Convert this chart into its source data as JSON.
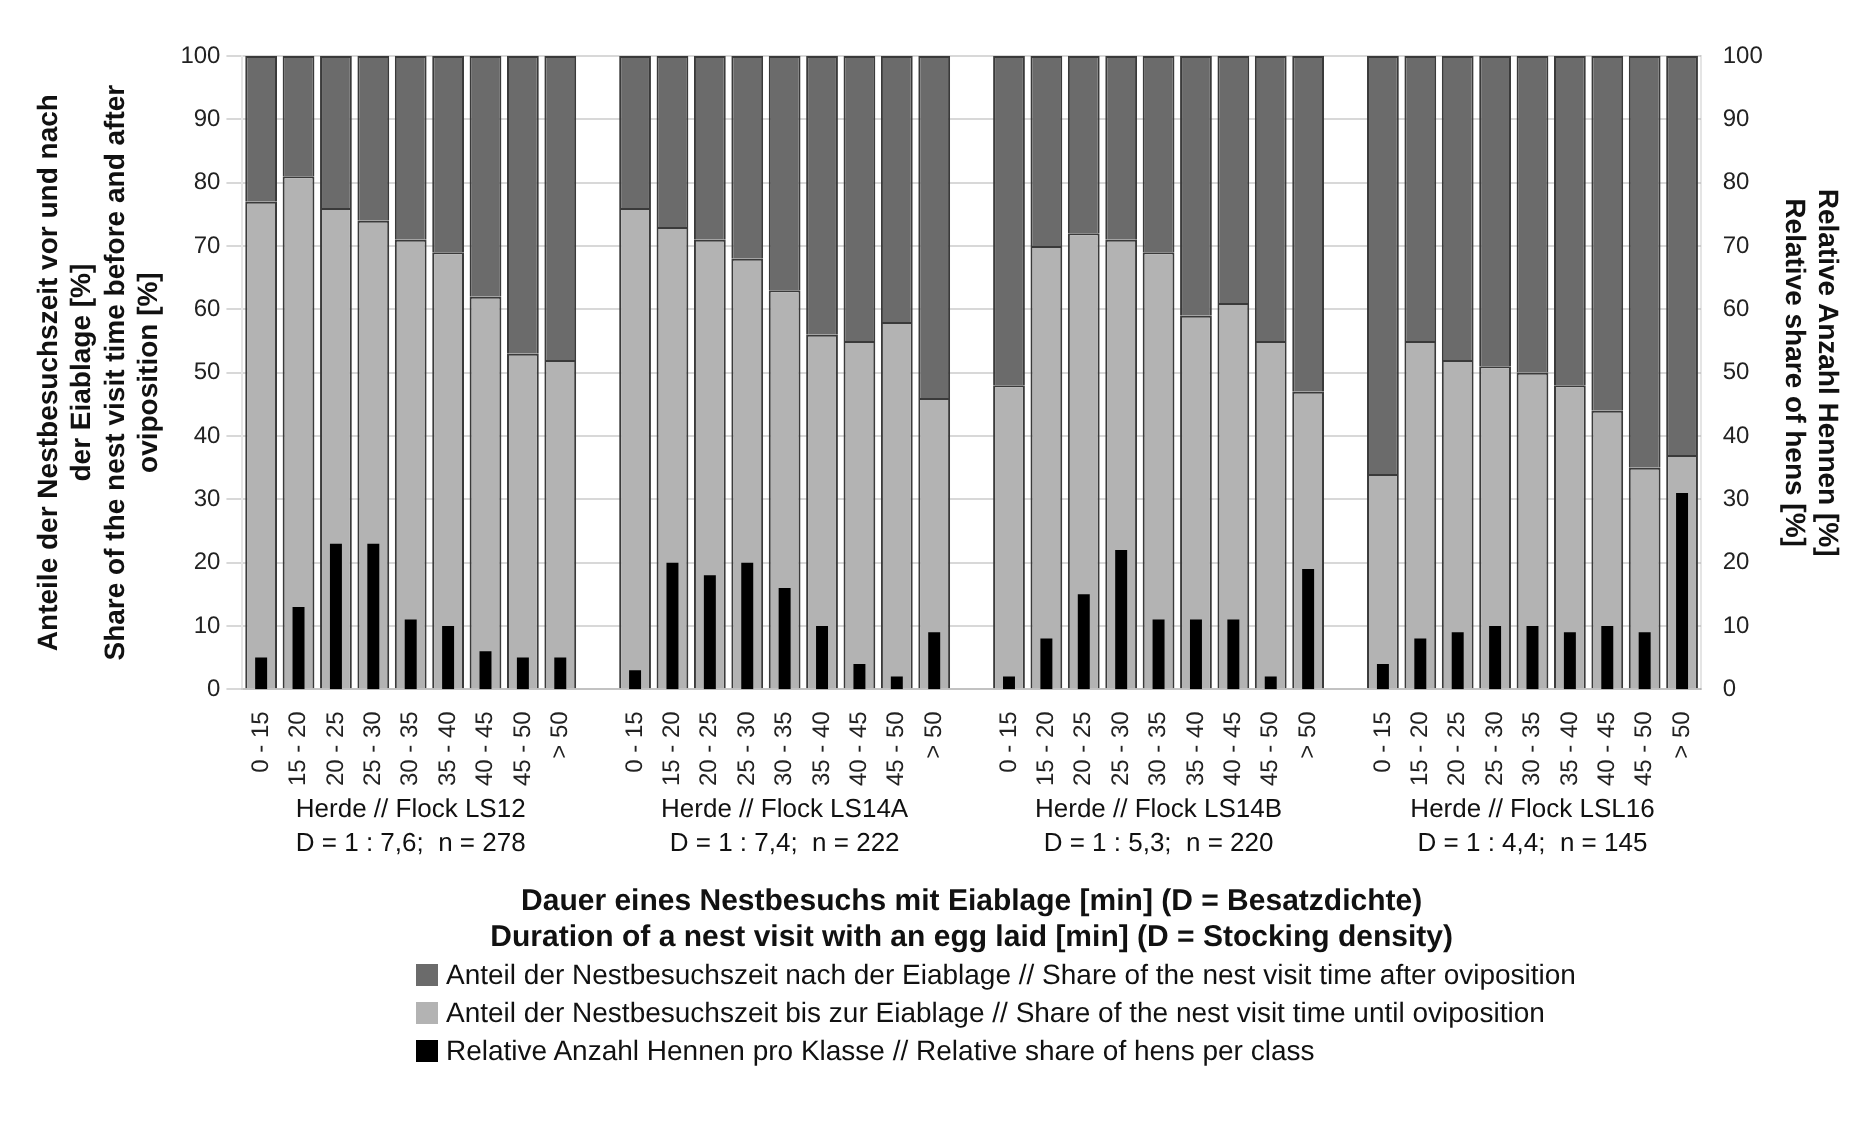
{
  "chart_data": {
    "type": "bar",
    "categories": [
      "0 - 15",
      "15 - 20",
      "20 - 25",
      "25 - 30",
      "30 - 35",
      "35 - 40",
      "40 - 45",
      "45 - 50",
      "> 50",
      null,
      "0 - 15",
      "15 - 20",
      "20 - 25",
      "25 - 30",
      "30 - 35",
      "35 - 40",
      "40 - 45",
      "45 - 50",
      "> 50",
      null,
      "0 - 15",
      "15 - 20",
      "20 - 25",
      "25 - 30",
      "30 - 35",
      "35 - 40",
      "40 - 45",
      "45 - 50",
      "> 50",
      null,
      "0 - 15",
      "15 - 20",
      "20 - 25",
      "25 - 30",
      "30 - 35",
      "35 - 40",
      "40 - 45",
      "45 - 50",
      "> 50"
    ],
    "stacked": true,
    "series": [
      {
        "name": "Anteil der Nestbesuchszeit bis zur Eiablage // Share of the nest visit time until oviposition",
        "color": "#b3b3b3",
        "values": [
          77,
          81,
          76,
          74,
          71,
          69,
          62,
          53,
          52,
          null,
          76,
          73,
          71,
          68,
          63,
          56,
          55,
          58,
          46,
          null,
          48,
          70,
          72,
          71,
          69,
          59,
          61,
          55,
          47,
          null,
          34,
          55,
          52,
          51,
          50,
          48,
          44,
          35,
          37
        ]
      },
      {
        "name": "Anteil der Nestbesuchszeit nach der Eiablage // Share of the nest visit time after oviposition",
        "color": "#6b6b6b",
        "values": [
          23,
          19,
          24,
          26,
          29,
          31,
          38,
          47,
          48,
          null,
          24,
          27,
          29,
          32,
          37,
          44,
          45,
          42,
          54,
          null,
          52,
          30,
          28,
          29,
          31,
          41,
          39,
          45,
          53,
          null,
          66,
          45,
          48,
          49,
          50,
          52,
          56,
          65,
          63
        ]
      },
      {
        "name": "Relative Anzahl Hennen pro Klasse // Relative share of hens per class",
        "color": "#000000",
        "axis": "y2",
        "values": [
          5,
          13,
          23,
          23,
          11,
          10,
          6,
          5,
          5,
          null,
          3,
          20,
          18,
          20,
          16,
          10,
          4,
          2,
          9,
          null,
          2,
          8,
          15,
          22,
          11,
          11,
          11,
          2,
          19,
          null,
          4,
          8,
          9,
          10,
          10,
          9,
          10,
          9,
          31
        ]
      }
    ],
    "ylim": [
      0,
      100
    ],
    "yticks": [
      0,
      10,
      20,
      30,
      40,
      50,
      60,
      70,
      80,
      90,
      100
    ],
    "y2lim": [
      0,
      100
    ],
    "y2ticks": [
      0,
      10,
      20,
      30,
      40,
      50,
      60,
      70,
      80,
      90,
      100
    ],
    "ylabel": "Anteile der Nestbesuchszeit vor und nach\nder Eiablage [%]\nShare of the nest visit time before and after\noviposition [%]",
    "y2label": "Relative Anzahl Hennen [%]\nRelative share of hens [%]",
    "xlabel": "Dauer eines Nestbesuchs mit Eiablage [min] (D = Besatzdichte)\nDuration of a nest visit with an egg laid [min] (D = Stocking density)",
    "annotations": [
      "Herde // Flock LS12\nD = 1 : 7,6;  n = 278",
      "Herde // Flock LS14A\nD = 1 : 7,4;  n = 222",
      "Herde // Flock LS14B\nD = 1 : 5,3;  n = 220",
      "Herde // Flock LSL16\nD = 1 : 4,4;  n = 145"
    ],
    "grid": "y",
    "legend": "bottom"
  }
}
